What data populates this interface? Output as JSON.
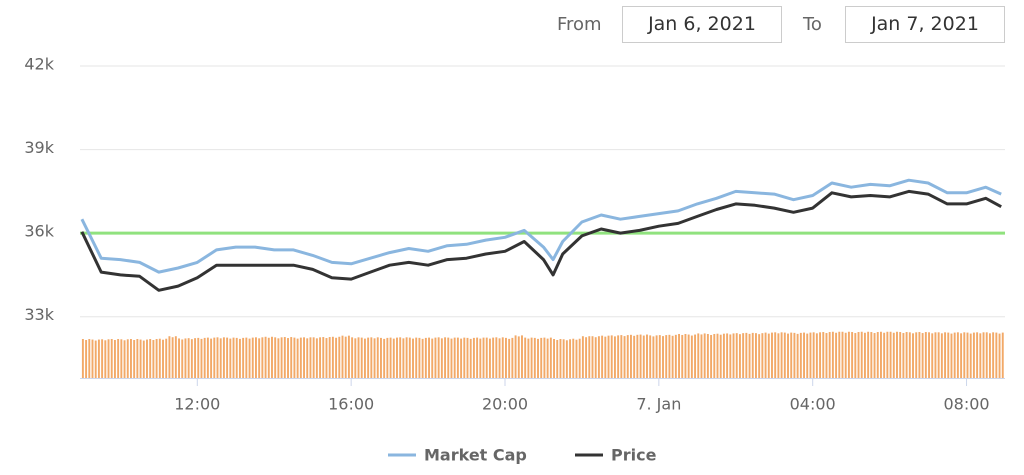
{
  "range_selector": {
    "from_label": "From",
    "from": "Jan 6, 2021",
    "to_label": "To",
    "to": "Jan 7, 2021"
  },
  "chart_data": {
    "type": "line",
    "x": [
      9,
      9.5,
      10,
      10.5,
      11,
      11.5,
      12,
      12.5,
      13,
      13.5,
      14,
      14.5,
      15,
      15.5,
      16,
      16.5,
      17,
      17.5,
      18,
      18.5,
      19,
      19.5,
      20,
      20.5,
      21,
      21.25,
      21.5,
      22,
      22.5,
      23,
      23.5,
      24,
      24.5,
      25,
      25.5,
      26,
      26.5,
      27,
      27.5,
      28,
      28.5,
      29,
      29.5,
      30,
      30.5,
      31,
      31.5,
      32,
      32.5,
      32.9
    ],
    "series": [
      {
        "name": "Market Cap",
        "color": "#8ab6df",
        "values": [
          36500,
          35100,
          35050,
          34950,
          34600,
          34750,
          34950,
          35400,
          35500,
          35500,
          35400,
          35400,
          35200,
          34950,
          34900,
          35100,
          35300,
          35450,
          35350,
          35550,
          35600,
          35750,
          35850,
          36100,
          35500,
          35050,
          35700,
          36400,
          36650,
          36500,
          36600,
          36700,
          36800,
          37050,
          37250,
          37500,
          37450,
          37400,
          37200,
          37350,
          37800,
          37650,
          37750,
          37700,
          37900,
          37800,
          37450,
          37450,
          37650,
          37400
        ]
      },
      {
        "name": "Price",
        "color": "#333333",
        "values": [
          36050,
          34600,
          34500,
          34450,
          33950,
          34100,
          34400,
          34850,
          34850,
          34850,
          34850,
          34850,
          34700,
          34400,
          34350,
          34600,
          34850,
          34950,
          34850,
          35050,
          35100,
          35250,
          35350,
          35700,
          35050,
          34500,
          35250,
          35900,
          36150,
          36000,
          36100,
          36250,
          36350,
          36600,
          36850,
          37050,
          37000,
          36900,
          36750,
          36900,
          37450,
          37300,
          37350,
          37300,
          37500,
          37400,
          37050,
          37050,
          37250,
          36950
        ]
      }
    ],
    "volume": {
      "color": "#f2a968",
      "x": [
        9,
        9.25,
        9.5,
        9.75,
        10,
        10.25,
        10.5,
        10.75,
        11,
        11.25,
        11.5,
        11.75,
        12,
        12.25,
        12.5,
        12.75,
        13,
        13.25,
        13.5,
        13.75,
        14,
        14.25,
        14.5,
        14.75,
        15,
        15.25,
        15.5,
        15.75,
        16,
        16.25,
        16.5,
        16.75,
        17,
        17.25,
        17.5,
        17.75,
        18,
        18.25,
        18.5,
        18.75,
        19,
        19.25,
        19.5,
        19.75,
        20,
        20.25,
        20.5,
        20.75,
        21,
        21.25,
        21.5,
        21.75,
        22,
        22.25,
        22.5,
        22.75,
        23,
        23.25,
        23.5,
        23.75,
        24,
        24.25,
        24.5,
        24.75,
        25,
        25.25,
        25.5,
        25.75,
        26,
        26.25,
        26.5,
        26.75,
        27,
        27.25,
        27.5,
        27.75,
        28,
        28.25,
        28.5,
        28.75,
        29,
        29.25,
        29.5,
        29.75,
        30,
        30.25,
        30.5,
        30.75,
        31,
        31.25,
        31.5,
        31.75,
        32,
        32.25,
        32.5,
        32.75
      ],
      "values": [
        32200,
        32180,
        32190,
        32200,
        32190,
        32200,
        32180,
        32200,
        32210,
        32300,
        32220,
        32230,
        32240,
        32250,
        32260,
        32250,
        32240,
        32250,
        32260,
        32280,
        32260,
        32270,
        32250,
        32260,
        32260,
        32270,
        32280,
        32320,
        32260,
        32250,
        32260,
        32240,
        32250,
        32260,
        32250,
        32240,
        32250,
        32260,
        32250,
        32250,
        32240,
        32250,
        32250,
        32260,
        32240,
        32330,
        32250,
        32240,
        32250,
        32200,
        32190,
        32210,
        32300,
        32300,
        32320,
        32330,
        32340,
        32350,
        32360,
        32330,
        32340,
        32350,
        32380,
        32360,
        32400,
        32380,
        32390,
        32400,
        32410,
        32420,
        32410,
        32430,
        32440,
        32430,
        32420,
        32430,
        32440,
        32450,
        32460,
        32460,
        32450,
        32460,
        32450,
        32460,
        32460,
        32450,
        32440,
        32450,
        32440,
        32440,
        32430,
        32440,
        32430,
        32440,
        32440,
        32430
      ]
    },
    "plot_line": {
      "value": 36000,
      "color": "#90e27e"
    },
    "xlim": [
      8.95,
      33.0
    ],
    "ylim": [
      30800,
      42000
    ],
    "xticks": [
      {
        "value": 12,
        "label": "12:00"
      },
      {
        "value": 16,
        "label": "16:00"
      },
      {
        "value": 20,
        "label": "20:00"
      },
      {
        "value": 24,
        "label": "7. Jan"
      },
      {
        "value": 28,
        "label": "04:00"
      },
      {
        "value": 32,
        "label": "08:00"
      }
    ],
    "yticks": [
      {
        "value": 33000,
        "label": "33k"
      },
      {
        "value": 36000,
        "label": "36k"
      },
      {
        "value": 39000,
        "label": "39k"
      },
      {
        "value": 42000,
        "label": "42k"
      }
    ],
    "grid": true,
    "legend": "bottom"
  }
}
